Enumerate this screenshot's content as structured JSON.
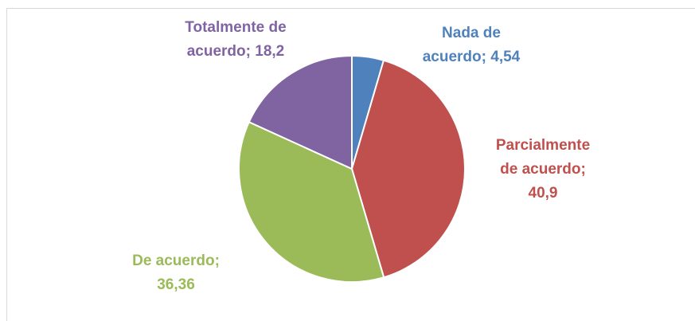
{
  "chart_data": {
    "type": "pie",
    "categories": [
      "Nada de acuerdo",
      "Parcialmente de acuerdo",
      "De acuerdo",
      "Totalmente de acuerdo"
    ],
    "values": [
      4.54,
      40.9,
      36.36,
      18.2
    ],
    "value_labels": [
      "4,54",
      "40,9",
      "36,36",
      "18,2"
    ],
    "label_separator": ";",
    "colors": [
      "#4f81bd",
      "#c0504d",
      "#9bbb59",
      "#8064a2"
    ]
  }
}
